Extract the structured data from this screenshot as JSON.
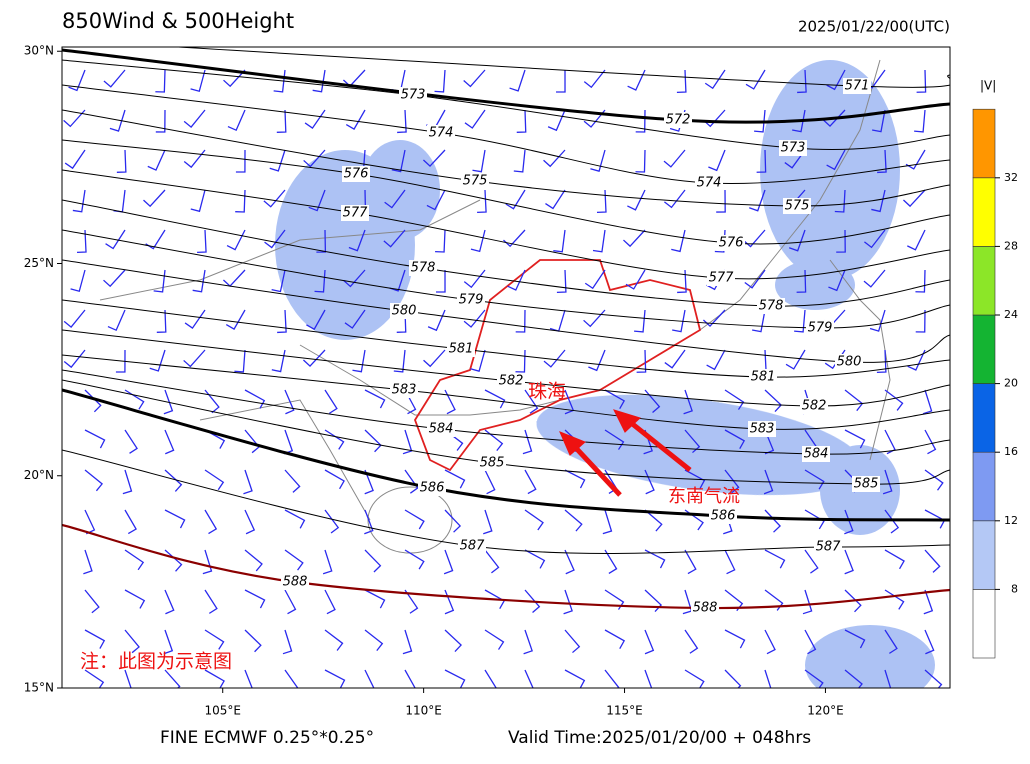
{
  "title": "850Wind & 500Height",
  "time": "2025/01/22/00(UTC)",
  "footer_left": "FINE ECMWF 0.25°*0.25°",
  "footer_right": "Valid Time:2025/01/20/00 + 048hrs",
  "map": {
    "lon_range": [
      101,
      123.1
    ],
    "lat_range": [
      15,
      30.1
    ],
    "lat_ticks": [
      {
        "value": 30,
        "label": "30°N"
      },
      {
        "value": 25,
        "label": "25°N"
      },
      {
        "value": 20,
        "label": "20°N"
      },
      {
        "value": 15,
        "label": "15°N"
      }
    ],
    "lon_ticks": [
      {
        "value": 105,
        "label": "105°E"
      },
      {
        "value": 110,
        "label": "110°E"
      },
      {
        "value": 115,
        "label": "115°E"
      },
      {
        "value": 120,
        "label": "120°E"
      }
    ]
  },
  "contours": [
    571,
    572,
    573,
    574,
    575,
    576,
    577,
    578,
    579,
    580,
    581,
    582,
    583,
    584,
    585,
    586,
    587,
    588
  ],
  "thick_contours": [
    572,
    586
  ],
  "highlight_contour": {
    "value": 588,
    "color": "#8b0000"
  },
  "colorbar": {
    "label": "|V|",
    "ticks": [
      8,
      12,
      16,
      20,
      24,
      28,
      32
    ],
    "colors": [
      "#ffffff",
      "#b4c8f5",
      "#7e9af2",
      "#0a64e6",
      "#14b432",
      "#8ce628",
      "#ffff00",
      "#ff9600"
    ]
  },
  "annotations": {
    "city": "珠海",
    "flow": "东南气流",
    "note": "注：此图为示意图"
  }
}
